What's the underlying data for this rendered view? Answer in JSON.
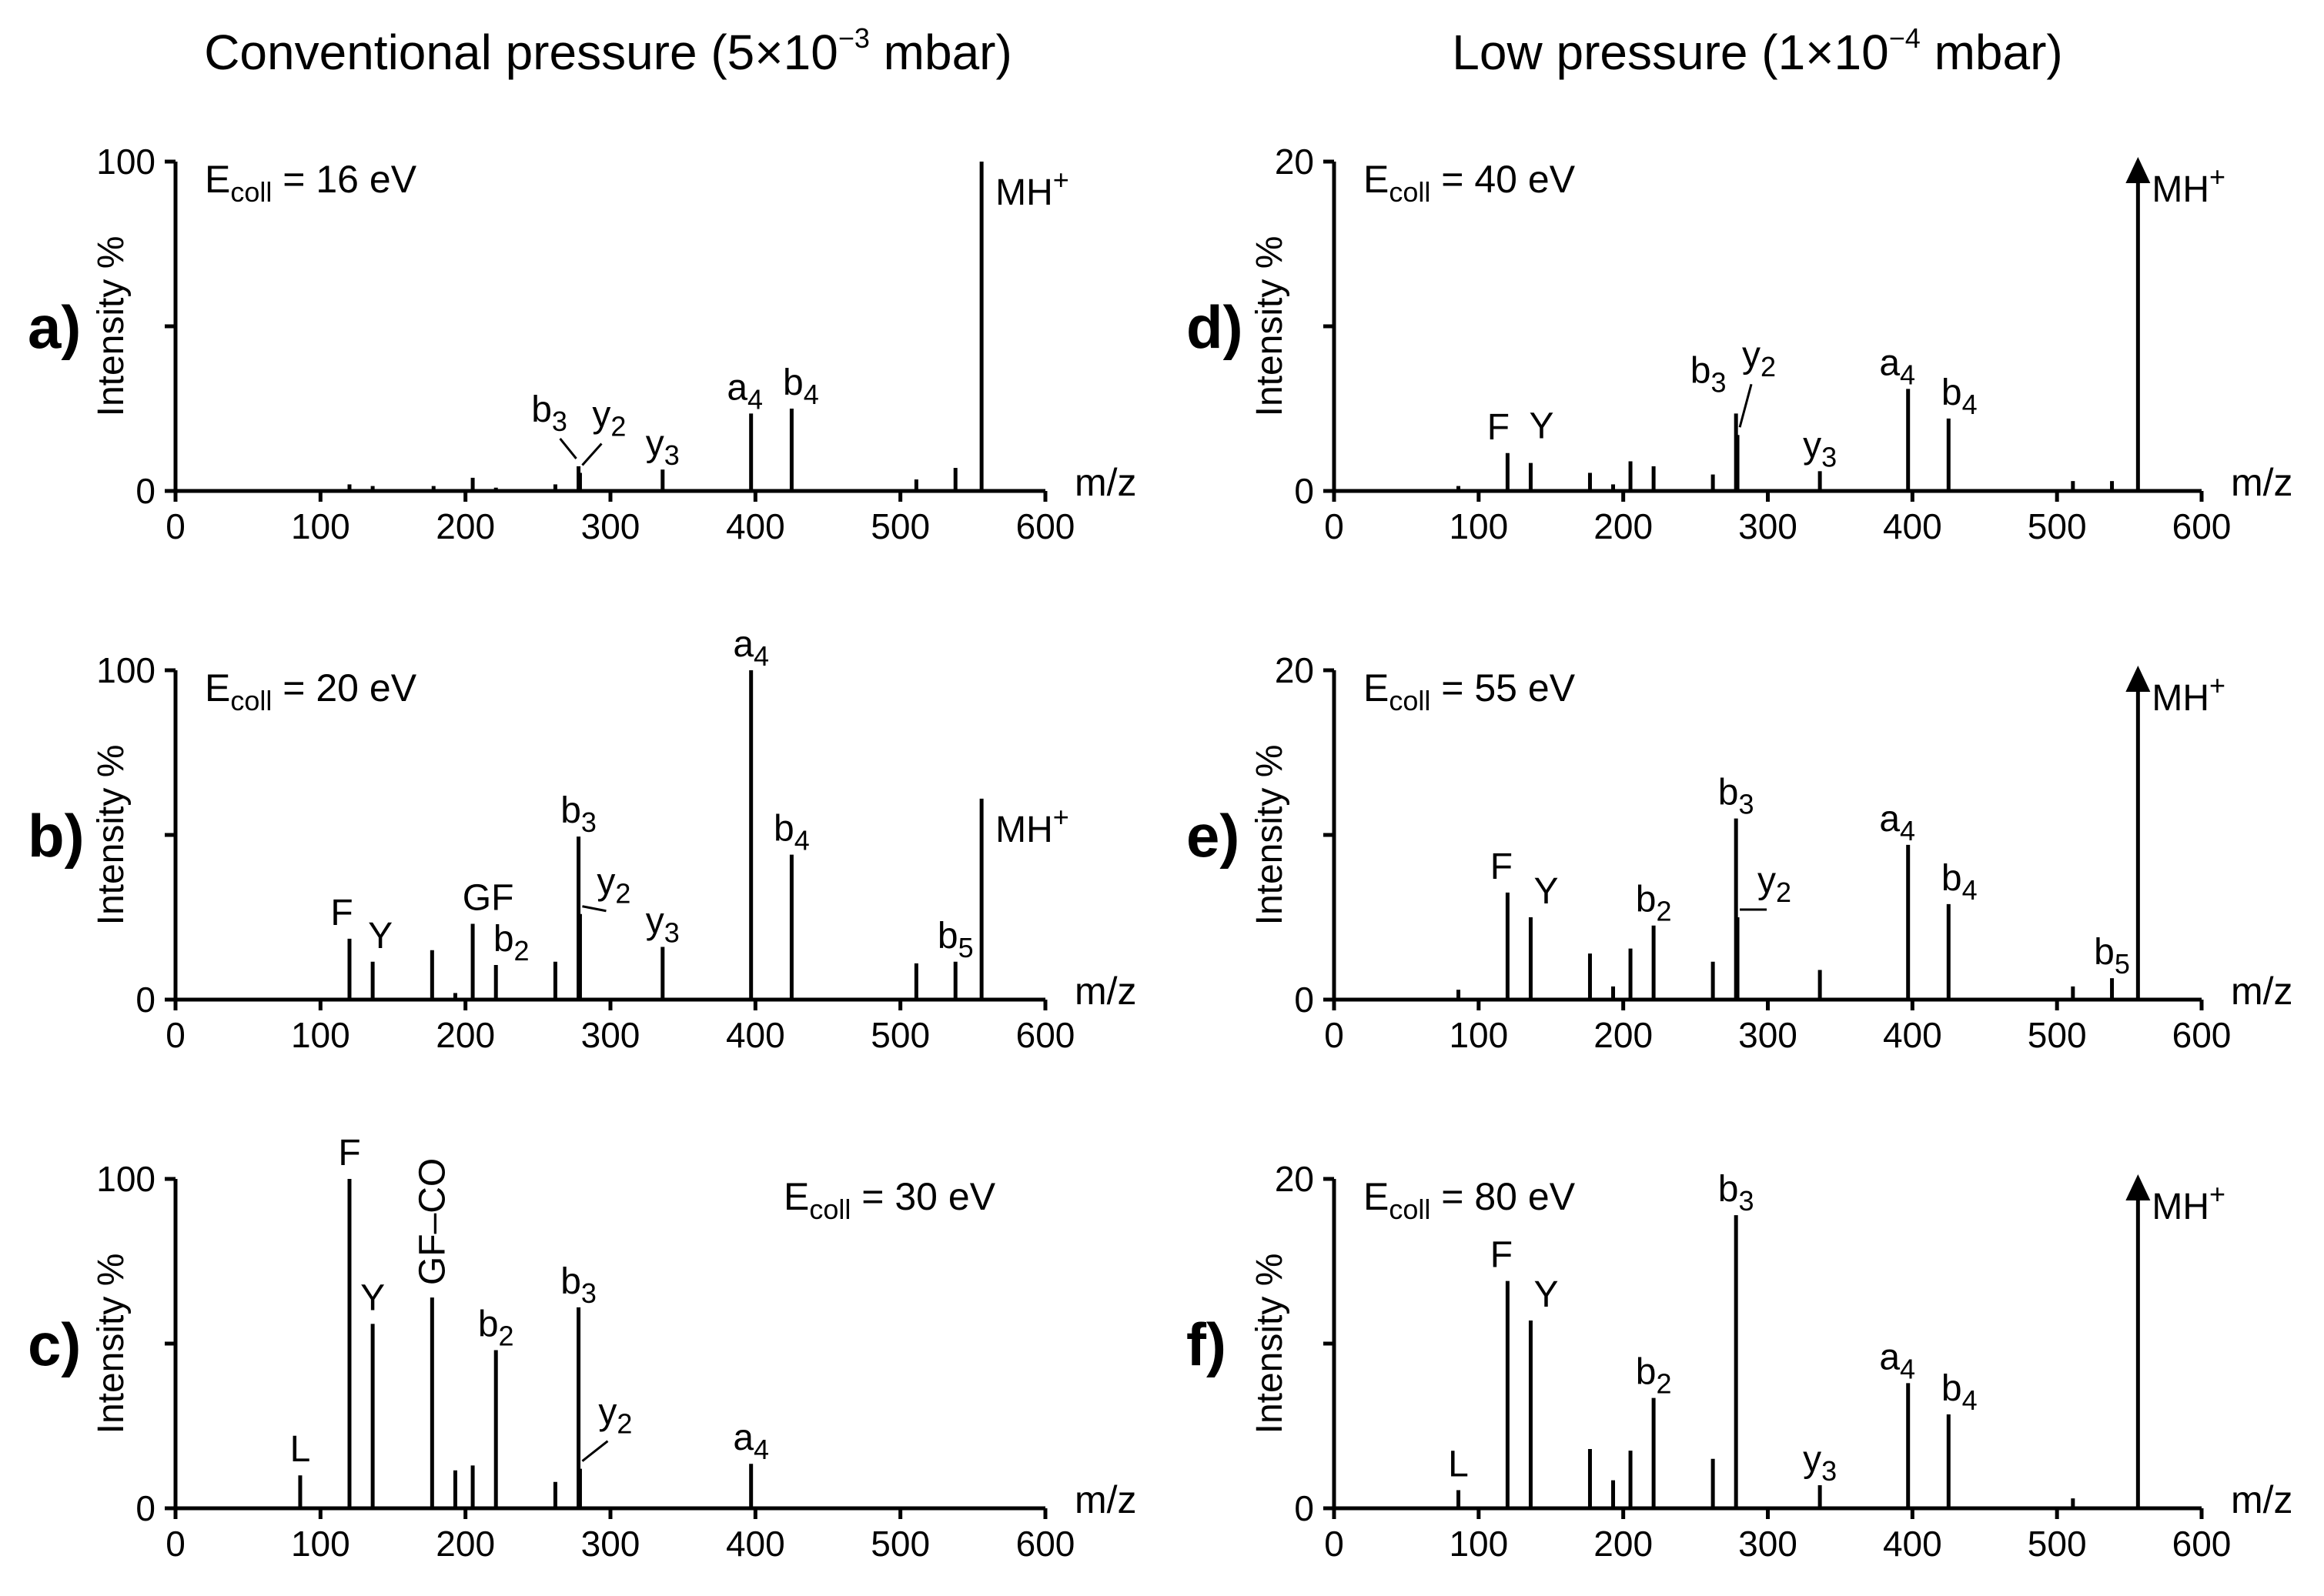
{
  "column_titles": [
    {
      "prefix": "Conventional pressure (5×10",
      "exp": "−3",
      "suffix": " mbar)"
    },
    {
      "prefix": "Low pressure (1×10",
      "exp": "−4",
      "suffix": " mbar)"
    }
  ],
  "ecoll_prefix": "E",
  "ecoll_sub": "coll",
  "colors": {
    "ink": "#000000",
    "background": "#ffffff"
  },
  "chart_data": [
    {
      "type": "bar",
      "panel": "a)",
      "ecoll": " = 16 eV",
      "ylabel": "Intensity %",
      "xlabel": "m/z",
      "xlim": [
        0,
        600
      ],
      "xticks": [
        0,
        100,
        200,
        300,
        400,
        500,
        600
      ],
      "ylim": [
        0,
        100
      ],
      "yticks": [
        0,
        50,
        100
      ],
      "yticklabels": [
        "0",
        "",
        "100"
      ],
      "peaks": [
        {
          "x": 120,
          "y": 2
        },
        {
          "x": 136,
          "y": 1.5
        },
        {
          "x": 178,
          "y": 1.5
        },
        {
          "x": 205,
          "y": 4
        },
        {
          "x": 221,
          "y": 1
        },
        {
          "x": 262,
          "y": 2
        },
        {
          "x": 278,
          "y": 7.5,
          "label": "b",
          "sub": "3"
        },
        {
          "x": 279,
          "y": 5.5,
          "label": "y",
          "sub": "2"
        },
        {
          "x": 336,
          "y": 6.5,
          "label": "y",
          "sub": "3"
        },
        {
          "x": 397,
          "y": 23.5,
          "label": "a",
          "sub": "4"
        },
        {
          "x": 425,
          "y": 25,
          "label": "b",
          "sub": "4"
        },
        {
          "x": 511,
          "y": 3.5
        },
        {
          "x": 538,
          "y": 7
        },
        {
          "x": 556,
          "y": 100,
          "label": "MH",
          "sup": "+"
        }
      ]
    },
    {
      "type": "bar",
      "panel": "b)",
      "ecoll": " = 20 eV",
      "ylabel": "Intensity %",
      "xlabel": "m/z",
      "xlim": [
        0,
        600
      ],
      "xticks": [
        0,
        100,
        200,
        300,
        400,
        500,
        600
      ],
      "ylim": [
        0,
        100
      ],
      "yticks": [
        0,
        50,
        100
      ],
      "yticklabels": [
        "0",
        "",
        "100"
      ],
      "peaks": [
        {
          "x": 120,
          "y": 18.5,
          "label": "F"
        },
        {
          "x": 136,
          "y": 11.5,
          "label": "Y"
        },
        {
          "x": 177,
          "y": 15
        },
        {
          "x": 193,
          "y": 2
        },
        {
          "x": 205,
          "y": 23,
          "label": "GF"
        },
        {
          "x": 221,
          "y": 10.5,
          "label": "b",
          "sub": "2"
        },
        {
          "x": 262,
          "y": 11.5
        },
        {
          "x": 278,
          "y": 49.5,
          "label": "b",
          "sub": "3"
        },
        {
          "x": 279,
          "y": 26,
          "label": "y",
          "sub": "2"
        },
        {
          "x": 336,
          "y": 16,
          "label": "y",
          "sub": "3"
        },
        {
          "x": 397,
          "y": 100,
          "label": "a",
          "sub": "4"
        },
        {
          "x": 425,
          "y": 44,
          "label": "b",
          "sub": "4"
        },
        {
          "x": 511,
          "y": 11
        },
        {
          "x": 538,
          "y": 11.5,
          "label": "b",
          "sub": "5"
        },
        {
          "x": 556,
          "y": 61,
          "label": "MH",
          "sup": "+"
        }
      ]
    },
    {
      "type": "bar",
      "panel": "c)",
      "ecoll": " = 30 eV",
      "ylabel": "Intensity %",
      "xlabel": "m/z",
      "xlim": [
        0,
        600
      ],
      "xticks": [
        0,
        100,
        200,
        300,
        400,
        500,
        600
      ],
      "ylim": [
        0,
        100
      ],
      "yticks": [
        0,
        50,
        100
      ],
      "yticklabels": [
        "0",
        "",
        "100"
      ],
      "peaks": [
        {
          "x": 86,
          "y": 10,
          "label": "L"
        },
        {
          "x": 120,
          "y": 100,
          "label": "F"
        },
        {
          "x": 136,
          "y": 56,
          "label": "Y"
        },
        {
          "x": 177,
          "y": 64,
          "label": "GF–CO"
        },
        {
          "x": 193,
          "y": 11.5
        },
        {
          "x": 205,
          "y": 13
        },
        {
          "x": 221,
          "y": 48,
          "label": "b",
          "sub": "2"
        },
        {
          "x": 262,
          "y": 8
        },
        {
          "x": 278,
          "y": 61,
          "label": "b",
          "sub": "3"
        },
        {
          "x": 279,
          "y": 12,
          "label": "y",
          "sub": "2"
        },
        {
          "x": 397,
          "y": 13.5,
          "label": "a",
          "sub": "4"
        }
      ]
    },
    {
      "type": "bar",
      "panel": "d)",
      "ecoll": " = 40 eV",
      "ylabel": "Intensity %",
      "xlabel": "m/z",
      "xlim": [
        0,
        600
      ],
      "xticks": [
        0,
        100,
        200,
        300,
        400,
        500,
        600
      ],
      "ylim": [
        0,
        20
      ],
      "yticks": [
        0,
        10,
        20
      ],
      "yticklabels": [
        "0",
        "",
        "20"
      ],
      "peaks": [
        {
          "x": 86,
          "y": 0.3
        },
        {
          "x": 120,
          "y": 2.3,
          "label": "F"
        },
        {
          "x": 136,
          "y": 1.7,
          "label": "Y"
        },
        {
          "x": 177,
          "y": 1.1
        },
        {
          "x": 193,
          "y": 0.4
        },
        {
          "x": 205,
          "y": 1.8
        },
        {
          "x": 221,
          "y": 1.5
        },
        {
          "x": 262,
          "y": 1.0
        },
        {
          "x": 278,
          "y": 4.7,
          "label": "b",
          "sub": "3"
        },
        {
          "x": 279,
          "y": 3.4,
          "label": "y",
          "sub": "2"
        },
        {
          "x": 336,
          "y": 1.2,
          "label": "y",
          "sub": "3"
        },
        {
          "x": 397,
          "y": 6.2,
          "label": "a",
          "sub": "4"
        },
        {
          "x": 425,
          "y": 4.4,
          "label": "b",
          "sub": "4"
        },
        {
          "x": 511,
          "y": 0.6
        },
        {
          "x": 538,
          "y": 0.6
        },
        {
          "x": 556,
          "y": 20,
          "label": "MH",
          "sup": "+",
          "offscale": true
        }
      ]
    },
    {
      "type": "bar",
      "panel": "e)",
      "ecoll": " = 55 eV",
      "ylabel": "Intensity %",
      "xlabel": "m/z",
      "xlim": [
        0,
        600
      ],
      "xticks": [
        0,
        100,
        200,
        300,
        400,
        500,
        600
      ],
      "ylim": [
        0,
        20
      ],
      "yticks": [
        0,
        10,
        20
      ],
      "yticklabels": [
        "0",
        "",
        "20"
      ],
      "peaks": [
        {
          "x": 86,
          "y": 0.6
        },
        {
          "x": 120,
          "y": 6.5,
          "label": "F"
        },
        {
          "x": 136,
          "y": 5.0,
          "label": "Y"
        },
        {
          "x": 177,
          "y": 2.8
        },
        {
          "x": 193,
          "y": 0.8
        },
        {
          "x": 205,
          "y": 3.1
        },
        {
          "x": 221,
          "y": 4.5,
          "label": "b",
          "sub": "2"
        },
        {
          "x": 262,
          "y": 2.3
        },
        {
          "x": 278,
          "y": 11.0,
          "label": "b",
          "sub": "3"
        },
        {
          "x": 279,
          "y": 5.0,
          "label": "y",
          "sub": "2"
        },
        {
          "x": 336,
          "y": 1.8
        },
        {
          "x": 397,
          "y": 9.4,
          "label": "a",
          "sub": "4"
        },
        {
          "x": 425,
          "y": 5.8,
          "label": "b",
          "sub": "4"
        },
        {
          "x": 511,
          "y": 0.8
        },
        {
          "x": 538,
          "y": 1.3,
          "label": "b",
          "sub": "5"
        },
        {
          "x": 556,
          "y": 20,
          "label": "MH",
          "sup": "+",
          "offscale": true
        }
      ]
    },
    {
      "type": "bar",
      "panel": "f)",
      "ecoll": " = 80 eV",
      "ylabel": "Intensity %",
      "xlabel": "m/z",
      "xlim": [
        0,
        600
      ],
      "xticks": [
        0,
        100,
        200,
        300,
        400,
        500,
        600
      ],
      "ylim": [
        0,
        20
      ],
      "yticks": [
        0,
        10,
        20
      ],
      "yticklabels": [
        "0",
        "",
        "20"
      ],
      "peaks": [
        {
          "x": 86,
          "y": 1.1,
          "label": "L"
        },
        {
          "x": 120,
          "y": 13.8,
          "label": "F"
        },
        {
          "x": 136,
          "y": 11.4,
          "label": "Y"
        },
        {
          "x": 177,
          "y": 3.6
        },
        {
          "x": 193,
          "y": 1.7
        },
        {
          "x": 205,
          "y": 3.5
        },
        {
          "x": 221,
          "y": 6.7,
          "label": "b",
          "sub": "2"
        },
        {
          "x": 262,
          "y": 3.0
        },
        {
          "x": 278,
          "y": 17.8,
          "label": "b",
          "sub": "3"
        },
        {
          "x": 336,
          "y": 1.4,
          "label": "y",
          "sub": "3"
        },
        {
          "x": 397,
          "y": 7.6,
          "label": "a",
          "sub": "4"
        },
        {
          "x": 425,
          "y": 5.7,
          "label": "b",
          "sub": "4"
        },
        {
          "x": 511,
          "y": 0.6
        },
        {
          "x": 556,
          "y": 20,
          "label": "MH",
          "sup": "+",
          "offscale": true
        }
      ]
    }
  ]
}
